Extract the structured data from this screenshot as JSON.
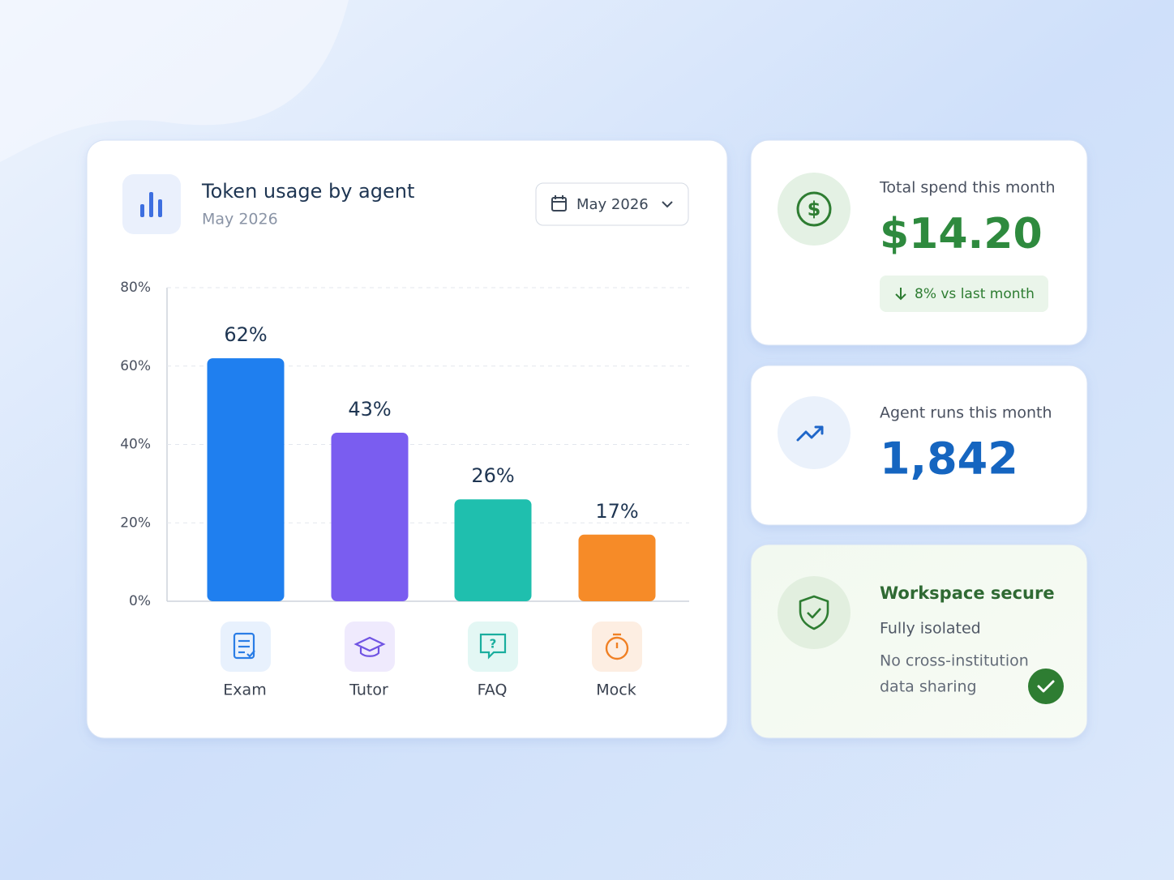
{
  "chart_data": {
    "type": "bar",
    "title": "Token usage by agent",
    "subtitle": "May 2026",
    "categories": [
      "Exam",
      "Tutor",
      "FAQ",
      "Mock"
    ],
    "values": [
      62,
      43,
      26,
      17
    ],
    "value_labels": [
      "62%",
      "43%",
      "26%",
      "17%"
    ],
    "colors": [
      "#1f7fef",
      "#7a5df0",
      "#1fbfae",
      "#f68b28"
    ],
    "ylim": [
      0,
      80
    ],
    "yticks": [
      {
        "value": 0,
        "label": "0%"
      },
      {
        "value": 20,
        "label": "20%"
      },
      {
        "value": 40,
        "label": "40%"
      },
      {
        "value": 60,
        "label": "60%"
      },
      {
        "value": 80,
        "label": "80%"
      }
    ],
    "grid": true
  },
  "date_picker": {
    "label": "May 2026"
  },
  "spend_card": {
    "label": "Total spend this month",
    "value": "$14.20",
    "change": "8% vs last month"
  },
  "runs_card": {
    "label": "Agent runs this month",
    "value": "1,842"
  },
  "security_card": {
    "title": "Workspace secure",
    "status": "Fully isolated",
    "note_lines": [
      "No cross-institution",
      "data sharing"
    ]
  }
}
